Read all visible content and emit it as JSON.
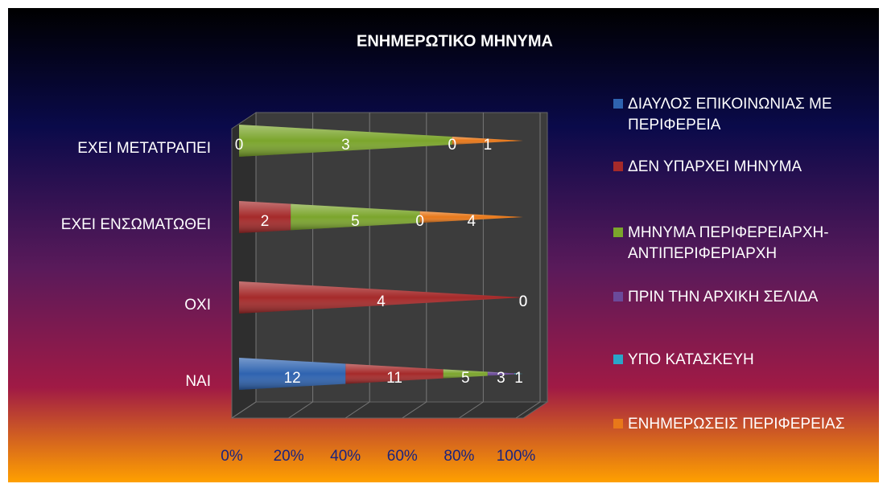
{
  "chart_data": {
    "type": "stacked100_cone",
    "title": "ΕΝΗΜΕΡΩΤΙΚΟ ΜΗΝΥΜΑ",
    "categories": [
      "ΝΑΙ",
      "ΟΧΙ",
      "ΕΧΕΙ ΕΝΣΩΜΑΤΩΘΕΙ",
      "ΕΧΕΙ ΜΕΤΑΤΡΑΠΕΙ"
    ],
    "series": [
      {
        "name": "ΔΙΑΥΛΟΣ ΕΠΙΚΟΙΝΩΝΙΑΣ ΜΕ ΠΕΡΙΦΕΡΕΙΑ",
        "color": "#2e63b0",
        "values": [
          12,
          null,
          null,
          null
        ]
      },
      {
        "name": "ΔΕΝ ΥΠΑΡΧΕΙ ΜΗΝΥΜΑ",
        "color": "#a52a2a",
        "values": [
          11,
          4,
          2,
          0
        ]
      },
      {
        "name": "ΜΗΝΥΜΑ ΠΕΡΙΦΕΡΕΙΑΡΧΗ-ΑΝΤΙΠΕΡΙΦΕΡΙΑΡΧΗ",
        "color": "#7ba52c",
        "values": [
          5,
          null,
          5,
          3
        ]
      },
      {
        "name": "ΠΡΙΝ ΤΗΝ ΑΡΧΙΚΗ ΣΕΛΙΔΑ",
        "color": "#6b4a9a",
        "values": [
          3,
          0,
          0,
          0
        ]
      },
      {
        "name": "ΥΠΟ ΚΑΤΑΣΚΕΥΗ",
        "color": "#2aa5c8",
        "values": [
          1,
          0,
          null,
          null
        ]
      },
      {
        "name": "ΕΝΗΜΕΡΩΣΕΙΣ ΠΕΡΙΦΕΡΕΙΑΣ",
        "color": "#e8781a",
        "values": [
          null,
          null,
          4,
          1
        ]
      }
    ],
    "xlim": [
      0,
      100
    ],
    "xticks": [
      {
        "value": 0,
        "label": "0%"
      },
      {
        "value": 20,
        "label": "20%"
      },
      {
        "value": 40,
        "label": "40%"
      },
      {
        "value": 60,
        "label": "60%"
      },
      {
        "value": 80,
        "label": "80%"
      },
      {
        "value": 100,
        "label": "100%"
      }
    ],
    "legend": "right"
  }
}
